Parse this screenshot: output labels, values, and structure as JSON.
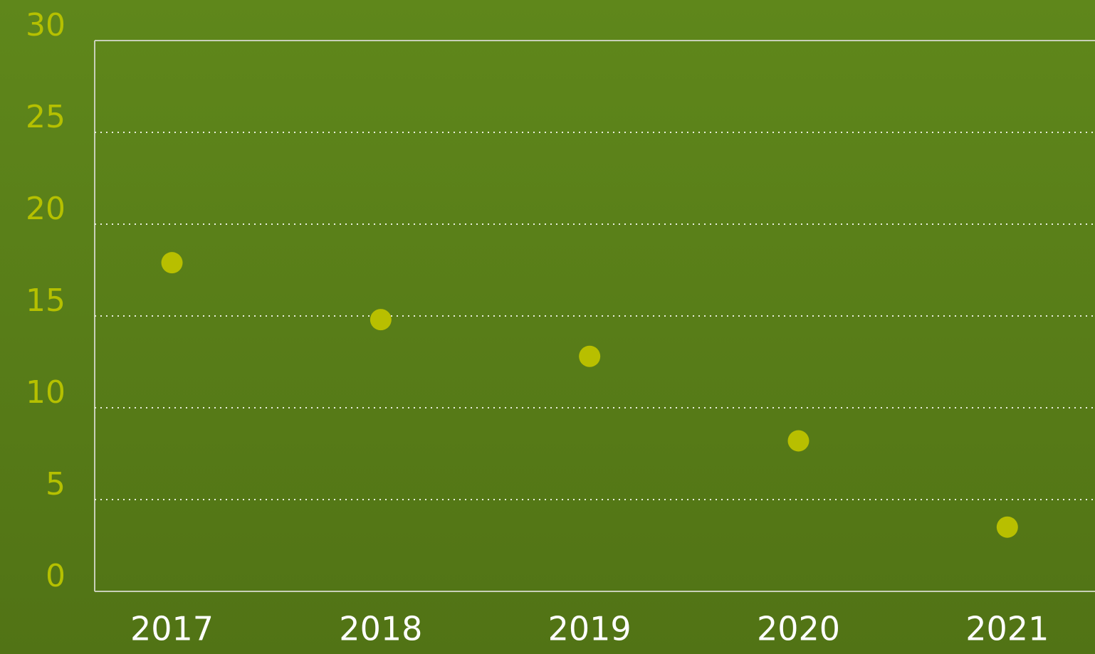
{
  "chart_data": {
    "type": "scatter",
    "x": [
      2017,
      2018,
      2019,
      2020,
      2021
    ],
    "values": [
      17.9,
      14.8,
      12.8,
      8.2,
      3.5
    ],
    "color": "#b8bf00",
    "xlim": [
      2016.63,
      2021.42
    ],
    "xticks": [
      2017,
      2018,
      2019,
      2020,
      2021
    ],
    "ylim": [
      0,
      30
    ],
    "yticks": [
      0,
      5,
      10,
      15,
      20,
      25,
      30
    ],
    "grid": true
  }
}
